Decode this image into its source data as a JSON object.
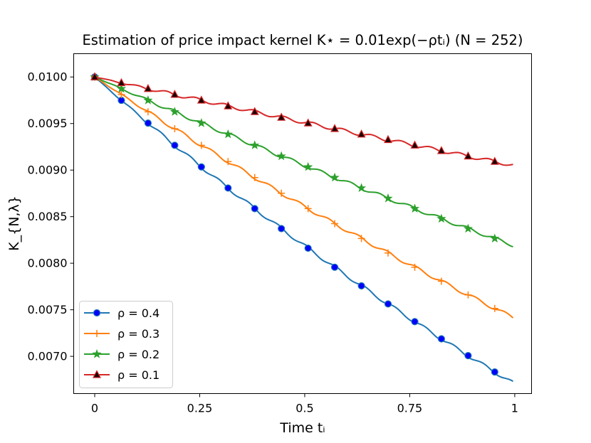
{
  "chart_data": {
    "type": "line",
    "title": "Estimation of price impact kernel K⋆ = 0.01exp(−ρtᵢ) (N = 252)",
    "xlabel": "Time tᵢ",
    "ylabel": "K_{N,λ}",
    "xlim": [
      -0.05,
      1.04
    ],
    "ylim": [
      0.0066,
      0.01025
    ],
    "xticks": [
      0,
      0.25,
      0.5,
      0.75,
      1
    ],
    "xtick_labels": [
      "0",
      "0.25",
      "0.5",
      "0.75",
      "1"
    ],
    "yticks": [
      0.007,
      0.0075,
      0.008,
      0.0085,
      0.009,
      0.0095,
      0.01
    ],
    "ytick_labels": [
      "0.0070",
      "0.0075",
      "0.0080",
      "0.0085",
      "0.0090",
      "0.0095",
      "0.0100"
    ],
    "grid": false,
    "legend_position": "lower-left",
    "marker_x": [
      0,
      0.0635,
      0.127,
      0.1905,
      0.254,
      0.3175,
      0.381,
      0.4444,
      0.508,
      0.5714,
      0.635,
      0.6984,
      0.762,
      0.8254,
      0.889,
      0.9524
    ],
    "end_x": 0.996,
    "series": [
      {
        "name": "ρ = 0.4",
        "rho": 0.4,
        "color": "#1f77b4",
        "marker": "circle",
        "marker_fill": "#0000ff"
      },
      {
        "name": "ρ = 0.3",
        "rho": 0.3,
        "color": "#ff7f0e",
        "marker": "plus",
        "marker_fill": "#ff7f0e"
      },
      {
        "name": "ρ = 0.2",
        "rho": 0.2,
        "color": "#2ca02c",
        "marker": "star",
        "marker_fill": "#2ca02c"
      },
      {
        "name": "ρ = 0.1",
        "rho": 0.1,
        "color": "#d62728",
        "marker": "triangle",
        "marker_fill": "#1a0000"
      }
    ]
  }
}
